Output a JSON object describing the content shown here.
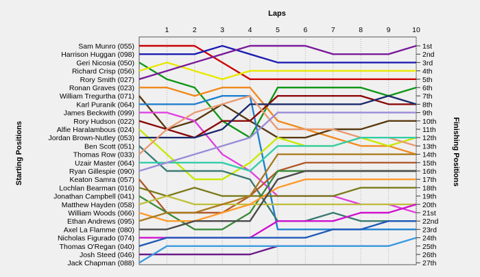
{
  "chart_data": {
    "type": "line",
    "subtype": "bump",
    "title": "Laps",
    "ylabel_left": "Starting Positions",
    "ylabel_right": "Finishing Positions",
    "x": [
      0,
      1,
      2,
      3,
      4,
      5,
      6,
      7,
      8,
      9,
      10
    ],
    "x_tick_labels": [
      "1",
      "2",
      "3",
      "4",
      "5",
      "6",
      "7",
      "8",
      "9",
      "10"
    ],
    "xlim": [
      0,
      10
    ],
    "ylim": [
      1,
      27
    ],
    "y_inverted": true,
    "grid": true,
    "finishing_labels": [
      "1st",
      "2nd",
      "3rd",
      "4th",
      "5th",
      "6th",
      "7th",
      "8th",
      "9th",
      "10th",
      "11th",
      "12th",
      "13th",
      "14th",
      "15th",
      "16th",
      "17th",
      "18th",
      "19th",
      "20th",
      "21st",
      "22nd",
      "23rd",
      "24th",
      "25th",
      "26th",
      "27th"
    ],
    "series": [
      {
        "name": "Sam Munro (055)",
        "color": "#cc0000",
        "values": [
          1,
          1,
          1,
          3,
          5,
          5,
          5,
          5,
          5,
          5,
          5
        ]
      },
      {
        "name": "Harrison Huggan (098)",
        "color": "#1c1cb4",
        "values": [
          2,
          2,
          2,
          1,
          2,
          3,
          3,
          3,
          3,
          3,
          3
        ]
      },
      {
        "name": "Geri Nicosia (050)",
        "color": "#109618",
        "values": [
          3,
          5,
          6,
          10,
          12,
          6,
          6,
          6,
          6,
          7,
          6
        ]
      },
      {
        "name": "Richard Crisp (056)",
        "color": "#e8e800",
        "values": [
          4,
          3,
          4,
          5,
          4,
          4,
          4,
          4,
          4,
          4,
          4
        ]
      },
      {
        "name": "Rory Smith (027)",
        "color": "#7a1a9a",
        "values": [
          5,
          4,
          3,
          2,
          1,
          1,
          1,
          2,
          2,
          2,
          1
        ]
      },
      {
        "name": "Ronan Graves (023)",
        "color": "#f08a1e",
        "values": [
          6,
          6,
          7,
          6,
          6,
          10,
          11,
          12,
          13,
          13,
          14
        ]
      },
      {
        "name": "William Tregurtha (071)",
        "color": "#5a3a10",
        "values": [
          7,
          11,
          10,
          8,
          10,
          12,
          12,
          11,
          11,
          10,
          10
        ]
      },
      {
        "name": "Karl Puranik (064)",
        "color": "#1f7fd0",
        "values": [
          8,
          8,
          8,
          7,
          7,
          23,
          23,
          23,
          23,
          23,
          23
        ]
      },
      {
        "name": "James Beckwith (099)",
        "color": "#e040e0",
        "values": [
          9,
          9,
          10,
          14,
          16,
          19,
          19,
          19,
          20,
          20,
          21
        ]
      },
      {
        "name": "Rory Hudson (022)",
        "color": "#8b0a0a",
        "values": [
          10,
          11,
          12,
          10,
          10,
          7,
          7,
          7,
          7,
          8,
          8
        ]
      },
      {
        "name": "Alfie Haralambous (024)",
        "color": "#c8e800",
        "values": [
          11,
          14,
          17,
          17,
          15,
          12,
          13,
          13,
          12,
          13,
          12
        ]
      },
      {
        "name": "Jordan Brown-Nutley (053)",
        "color": "#1a2a6c",
        "values": [
          12,
          12,
          12,
          11,
          8,
          8,
          8,
          8,
          8,
          7,
          8
        ]
      },
      {
        "name": "Ben Scott (051)",
        "color": "#3a7a72",
        "values": [
          13,
          16,
          16,
          16,
          17,
          22,
          22,
          21,
          22,
          22,
          22
        ]
      },
      {
        "name": "Thomas Row (033)",
        "color": "#e89a70",
        "values": [
          14,
          11,
          9,
          8,
          7,
          11,
          11,
          11,
          12,
          12,
          13
        ]
      },
      {
        "name": "Uzair Master (064)",
        "color": "#33ccaa",
        "values": [
          15,
          15,
          15,
          15,
          16,
          13,
          13,
          13,
          12,
          12,
          12
        ]
      },
      {
        "name": "Ryan Gillespie (090)",
        "color": "#9a8ad8",
        "values": [
          16,
          15,
          14,
          13,
          12,
          9,
          9,
          9,
          9,
          9,
          9
        ]
      },
      {
        "name": "Keaton Samra (057)",
        "color": "#b05a2a",
        "values": [
          17,
          21,
          21,
          21,
          19,
          16,
          15,
          15,
          15,
          15,
          15
        ]
      },
      {
        "name": "Lochlan Bearman (016)",
        "color": "#7a7a1a",
        "values": [
          18,
          19,
          18,
          19,
          19,
          19,
          19,
          19,
          18,
          18,
          18
        ]
      },
      {
        "name": "Jonathan Campbell (041)",
        "color": "#3a8a3a",
        "values": [
          19,
          21,
          23,
          23,
          21,
          16,
          16,
          16,
          16,
          16,
          16
        ]
      },
      {
        "name": "Matthew Hayden (058)",
        "color": "#c0c040",
        "values": [
          20,
          19,
          20,
          20,
          20,
          20,
          20,
          20,
          20,
          20,
          20
        ]
      },
      {
        "name": "William Woods (066)",
        "color": "#ff9a2a",
        "values": [
          21,
          22,
          22,
          21,
          20,
          18,
          17,
          17,
          17,
          17,
          17
        ]
      },
      {
        "name": "Ethan Andrews (095)",
        "color": "#aa7a20",
        "values": [
          22,
          21,
          21,
          20,
          19,
          14,
          14,
          14,
          14,
          14,
          14
        ]
      },
      {
        "name": "Axel La Flamme (080)",
        "color": "#4a4a4a",
        "values": [
          23,
          23,
          22,
          22,
          22,
          17,
          16,
          16,
          16,
          16,
          16
        ]
      },
      {
        "name": "Nicholas Figurado (074)",
        "color": "#d010d0",
        "values": [
          24,
          24,
          24,
          24,
          24,
          22,
          22,
          22,
          21,
          21,
          20
        ]
      },
      {
        "name": "Thomas O'Regan (040)",
        "color": "#1f5ab8",
        "values": [
          25,
          24,
          24,
          24,
          24,
          24,
          24,
          23,
          23,
          22,
          22
        ]
      },
      {
        "name": "Josh Steed (046)",
        "color": "#6a1a8a",
        "values": [
          26,
          26,
          26,
          26,
          26,
          25,
          25,
          25,
          25,
          25,
          null
        ]
      },
      {
        "name": "Jack Chapman (088)",
        "color": "#3a9ae0",
        "values": [
          27,
          25,
          25,
          25,
          25,
          25,
          25,
          25,
          25,
          25,
          24
        ]
      }
    ]
  }
}
